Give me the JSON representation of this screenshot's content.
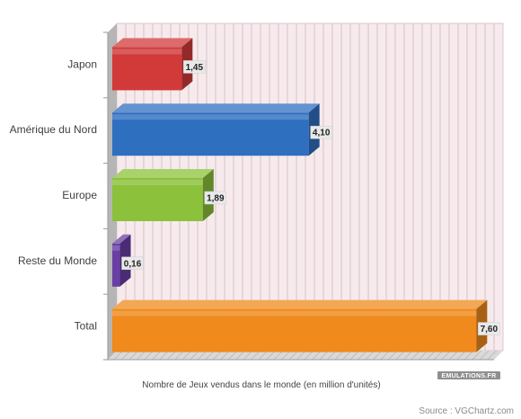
{
  "chart_data": {
    "type": "bar",
    "orientation": "horizontal",
    "categories": [
      "Japon",
      "Amérique du Nord",
      "Europe",
      "Reste du Monde",
      "Total"
    ],
    "values": [
      1.45,
      4.1,
      1.89,
      0.16,
      7.6
    ],
    "value_labels": [
      "1,45",
      "4,10",
      "1,89",
      "0,16",
      "7,60"
    ],
    "bar_colors": [
      "#d23a3a",
      "#2f6fc0",
      "#8cc13b",
      "#6a3fa5",
      "#f08a1c"
    ],
    "xlabel": "Nombre de Jeux vendus dans le monde (en million d'unités)",
    "xlim": [
      0,
      7.8
    ],
    "grid": true,
    "legend": "none"
  },
  "watermark": "EMULATIONS.FR",
  "source": "Source : VGChartz.com"
}
